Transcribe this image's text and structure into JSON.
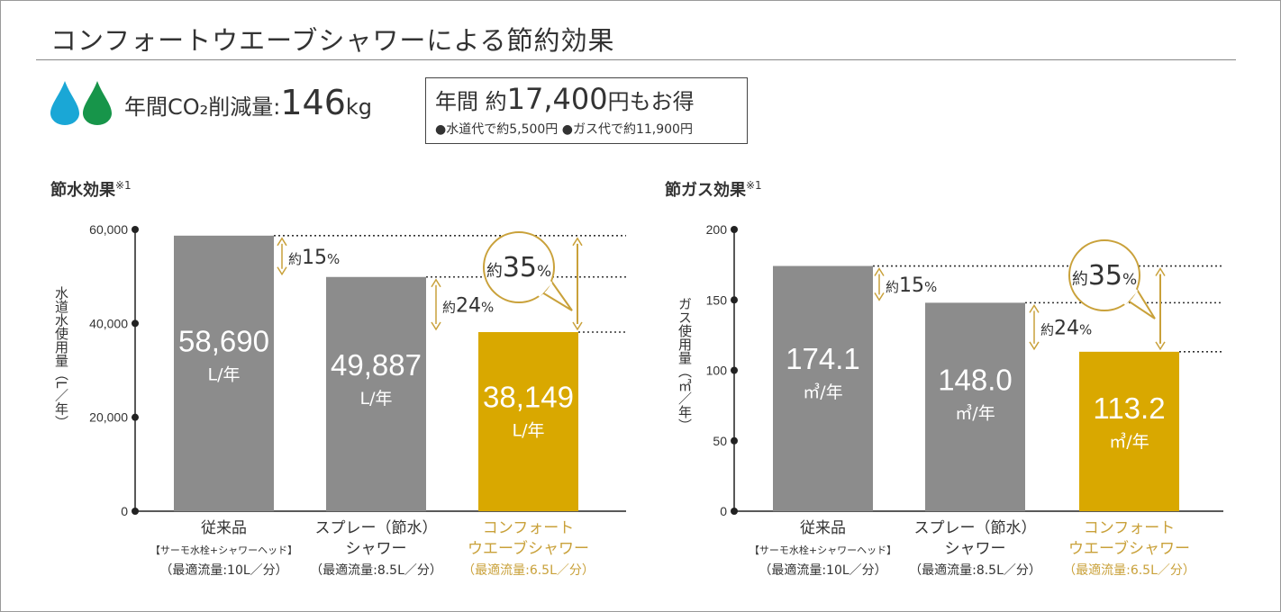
{
  "title": "コンフォートウエーブシャワーによる節約効果",
  "co2": {
    "label": "年間CO₂削減量:",
    "value": "146",
    "unit": "kg"
  },
  "savings": {
    "prefix": "年間 約",
    "value": "17,400",
    "suffix": "円もお得",
    "detail": "●水道代で約5,500円 ●ガス代で約11,900円"
  },
  "colors": {
    "water_drop": "#1aa7d6",
    "green_drop": "#17954a",
    "bar_gray": "#8c8c8c",
    "bar_highlight": "#d9a800",
    "accent_text": "#c9a13a",
    "annotation": "#c9a13a"
  },
  "chart_data": [
    {
      "type": "bar",
      "title": "節水効果",
      "title_note": "※1",
      "ylabel": "水道水使用量（L／年）",
      "ylim": [
        0,
        60000
      ],
      "yticks": [
        "0",
        "20,000",
        "40,000",
        "60,000"
      ],
      "ytick_values": [
        0,
        20000,
        40000,
        60000
      ],
      "grid": false,
      "categories": [
        [
          "従来品",
          "【サーモ水栓+シャワーヘッド】",
          "（最適流量:10L／分）"
        ],
        [
          "スプレー（節水）",
          "シャワー",
          "（最適流量:8.5L／分）"
        ],
        [
          "コンフォート",
          "ウエーブシャワー",
          "（最適流量:6.5L／分）"
        ]
      ],
      "values": [
        58690,
        49887,
        38149
      ],
      "data_labels": [
        "58,690",
        "49,887",
        "38,149"
      ],
      "unit_label": "L/年",
      "highlight_index": 2,
      "annotations": [
        {
          "from": 0,
          "to": 1,
          "label_prefix": "約",
          "label": "15",
          "label_suffix": "%"
        },
        {
          "from": 1,
          "to": 2,
          "label_prefix": "約",
          "label": "24",
          "label_suffix": "%"
        },
        {
          "from": 0,
          "to": 2,
          "label_prefix": "約",
          "label": "35",
          "label_suffix": "%",
          "bubble": true
        }
      ]
    },
    {
      "type": "bar",
      "title": "節ガス効果",
      "title_note": "※1",
      "ylabel": "ガス使用量（㎥／年）",
      "ylim": [
        0,
        200
      ],
      "yticks": [
        "0",
        "50",
        "100",
        "150",
        "200"
      ],
      "ytick_values": [
        0,
        50,
        100,
        150,
        200
      ],
      "grid": false,
      "categories": [
        [
          "従来品",
          "【サーモ水栓+シャワーヘッド】",
          "（最適流量:10L／分）"
        ],
        [
          "スプレー（節水）",
          "シャワー",
          "（最適流量:8.5L／分）"
        ],
        [
          "コンフォート",
          "ウエーブシャワー",
          "（最適流量:6.5L／分）"
        ]
      ],
      "values": [
        174.1,
        148.0,
        113.2
      ],
      "data_labels": [
        "174.1",
        "148.0",
        "113.2"
      ],
      "unit_label": "㎥/年",
      "highlight_index": 2,
      "annotations": [
        {
          "from": 0,
          "to": 1,
          "label_prefix": "約",
          "label": "15",
          "label_suffix": "%"
        },
        {
          "from": 1,
          "to": 2,
          "label_prefix": "約",
          "label": "24",
          "label_suffix": "%"
        },
        {
          "from": 0,
          "to": 2,
          "label_prefix": "約",
          "label": "35",
          "label_suffix": "%",
          "bubble": true
        }
      ]
    }
  ]
}
